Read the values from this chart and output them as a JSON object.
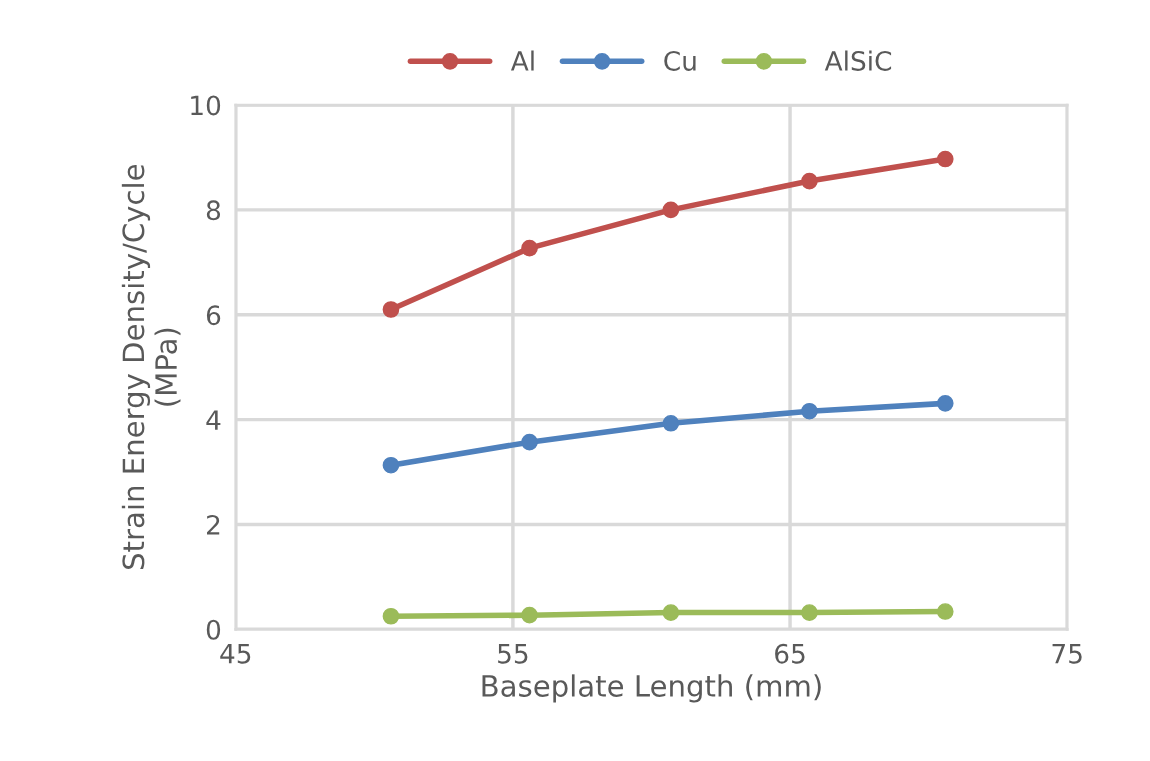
{
  "chart_data": {
    "type": "line",
    "xlabel": "Baseplate Length (mm)",
    "ylabel": "Strain Energy Density/Cycle\n(MPa)",
    "x": [
      50.6,
      55.6,
      60.7,
      65.7,
      70.6
    ],
    "series": [
      {
        "name": "Al",
        "color": "#c0504d",
        "values": [
          6.1,
          7.27,
          8.0,
          8.55,
          8.97
        ]
      },
      {
        "name": "Cu",
        "color": "#4f81bd",
        "values": [
          3.13,
          3.57,
          3.93,
          4.16,
          4.31
        ]
      },
      {
        "name": "AlSiC",
        "color": "#9bbb59",
        "values": [
          0.25,
          0.27,
          0.32,
          0.32,
          0.34
        ]
      }
    ],
    "xlim": [
      45,
      75
    ],
    "xticks": [
      45,
      55,
      65,
      75
    ],
    "ylim": [
      0,
      10
    ],
    "yticks": [
      0,
      2,
      4,
      6,
      8,
      10
    ],
    "grid": true,
    "legend": "top",
    "marker": "circle",
    "line_style": "solid"
  }
}
